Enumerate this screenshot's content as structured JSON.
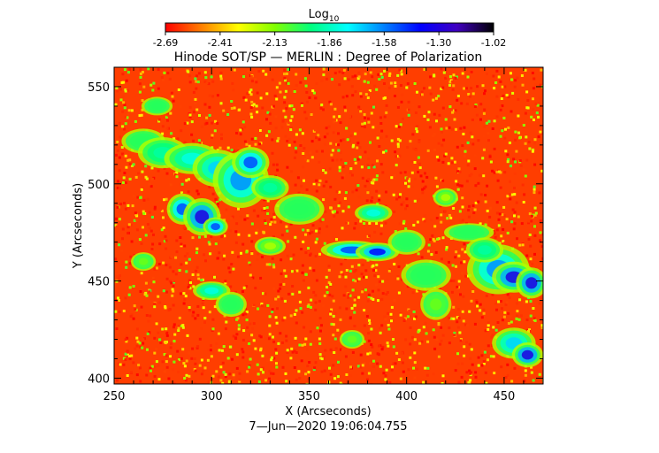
{
  "colorbar": {
    "label": "Log",
    "label_subscript": "10",
    "ticks": [
      "-2.69",
      "-2.41",
      "-2.13",
      "-1.86",
      "-1.58",
      "-1.30",
      "-1.02"
    ],
    "colors": [
      "#ff0000",
      "#ff8000",
      "#ffff00",
      "#80ff00",
      "#00ff80",
      "#00ffff",
      "#0080ff",
      "#0000ff",
      "#4000c0",
      "#000000"
    ]
  },
  "chart_data": {
    "type": "heatmap",
    "title": "Hinode SOT/SP — MERLIN : Degree of Polarization",
    "xlabel": "X (Arcseconds)",
    "ylabel": "Y (Arcseconds)",
    "xlim": [
      250,
      470
    ],
    "ylim": [
      397,
      560
    ],
    "x_ticks": [
      250,
      300,
      350,
      400,
      450
    ],
    "y_ticks": [
      400,
      450,
      500,
      550
    ],
    "value_range": [
      -2.69,
      -1.02
    ],
    "background_level": -2.6,
    "features": [
      {
        "x": 265,
        "y": 522,
        "rx": 7,
        "ry": 4,
        "level": -2.0
      },
      {
        "x": 275,
        "y": 516,
        "rx": 8,
        "ry": 5,
        "level": -1.9
      },
      {
        "x": 290,
        "y": 513,
        "rx": 9,
        "ry": 5,
        "level": -1.8
      },
      {
        "x": 303,
        "y": 508,
        "rx": 8,
        "ry": 6,
        "level": -1.7
      },
      {
        "x": 315,
        "y": 502,
        "rx": 9,
        "ry": 9,
        "level": -1.6
      },
      {
        "x": 320,
        "y": 511,
        "rx": 6,
        "ry": 5,
        "level": -1.5
      },
      {
        "x": 330,
        "y": 498,
        "rx": 6,
        "ry": 4,
        "level": -1.9
      },
      {
        "x": 345,
        "y": 487,
        "rx": 8,
        "ry": 5,
        "level": -2.0
      },
      {
        "x": 285,
        "y": 487,
        "rx": 5,
        "ry": 5,
        "level": -1.5
      },
      {
        "x": 295,
        "y": 483,
        "rx": 6,
        "ry": 6,
        "level": -1.3
      },
      {
        "x": 302,
        "y": 478,
        "rx": 4,
        "ry": 3,
        "level": -1.5
      },
      {
        "x": 272,
        "y": 540,
        "rx": 5,
        "ry": 3,
        "level": -2.0
      },
      {
        "x": 300,
        "y": 445,
        "rx": 6,
        "ry": 3,
        "level": -1.8
      },
      {
        "x": 310,
        "y": 438,
        "rx": 5,
        "ry": 4,
        "level": -2.0
      },
      {
        "x": 372,
        "y": 466,
        "rx": 10,
        "ry": 3,
        "level": -1.5
      },
      {
        "x": 385,
        "y": 465,
        "rx": 7,
        "ry": 3,
        "level": -1.4
      },
      {
        "x": 383,
        "y": 485,
        "rx": 6,
        "ry": 3,
        "level": -1.8
      },
      {
        "x": 400,
        "y": 470,
        "rx": 6,
        "ry": 4,
        "level": -2.0
      },
      {
        "x": 410,
        "y": 453,
        "rx": 8,
        "ry": 5,
        "level": -2.0
      },
      {
        "x": 415,
        "y": 438,
        "rx": 5,
        "ry": 5,
        "level": -2.1
      },
      {
        "x": 432,
        "y": 475,
        "rx": 8,
        "ry": 3,
        "level": -2.0
      },
      {
        "x": 447,
        "y": 456,
        "rx": 10,
        "ry": 8,
        "level": -1.6
      },
      {
        "x": 455,
        "y": 452,
        "rx": 7,
        "ry": 5,
        "level": -1.3
      },
      {
        "x": 464,
        "y": 449,
        "rx": 5,
        "ry": 5,
        "level": -1.3
      },
      {
        "x": 440,
        "y": 466,
        "rx": 6,
        "ry": 4,
        "level": -1.9
      },
      {
        "x": 455,
        "y": 418,
        "rx": 7,
        "ry": 5,
        "level": -1.7
      },
      {
        "x": 462,
        "y": 412,
        "rx": 5,
        "ry": 4,
        "level": -1.3
      },
      {
        "x": 372,
        "y": 420,
        "rx": 4,
        "ry": 3,
        "level": -2.1
      },
      {
        "x": 265,
        "y": 460,
        "rx": 4,
        "ry": 3,
        "level": -2.1
      },
      {
        "x": 330,
        "y": 468,
        "rx": 5,
        "ry": 3,
        "level": -2.2
      },
      {
        "x": 420,
        "y": 493,
        "rx": 4,
        "ry": 3,
        "level": -2.2
      }
    ]
  },
  "timestamp": "7—Jun—2020 19:06:04.755"
}
